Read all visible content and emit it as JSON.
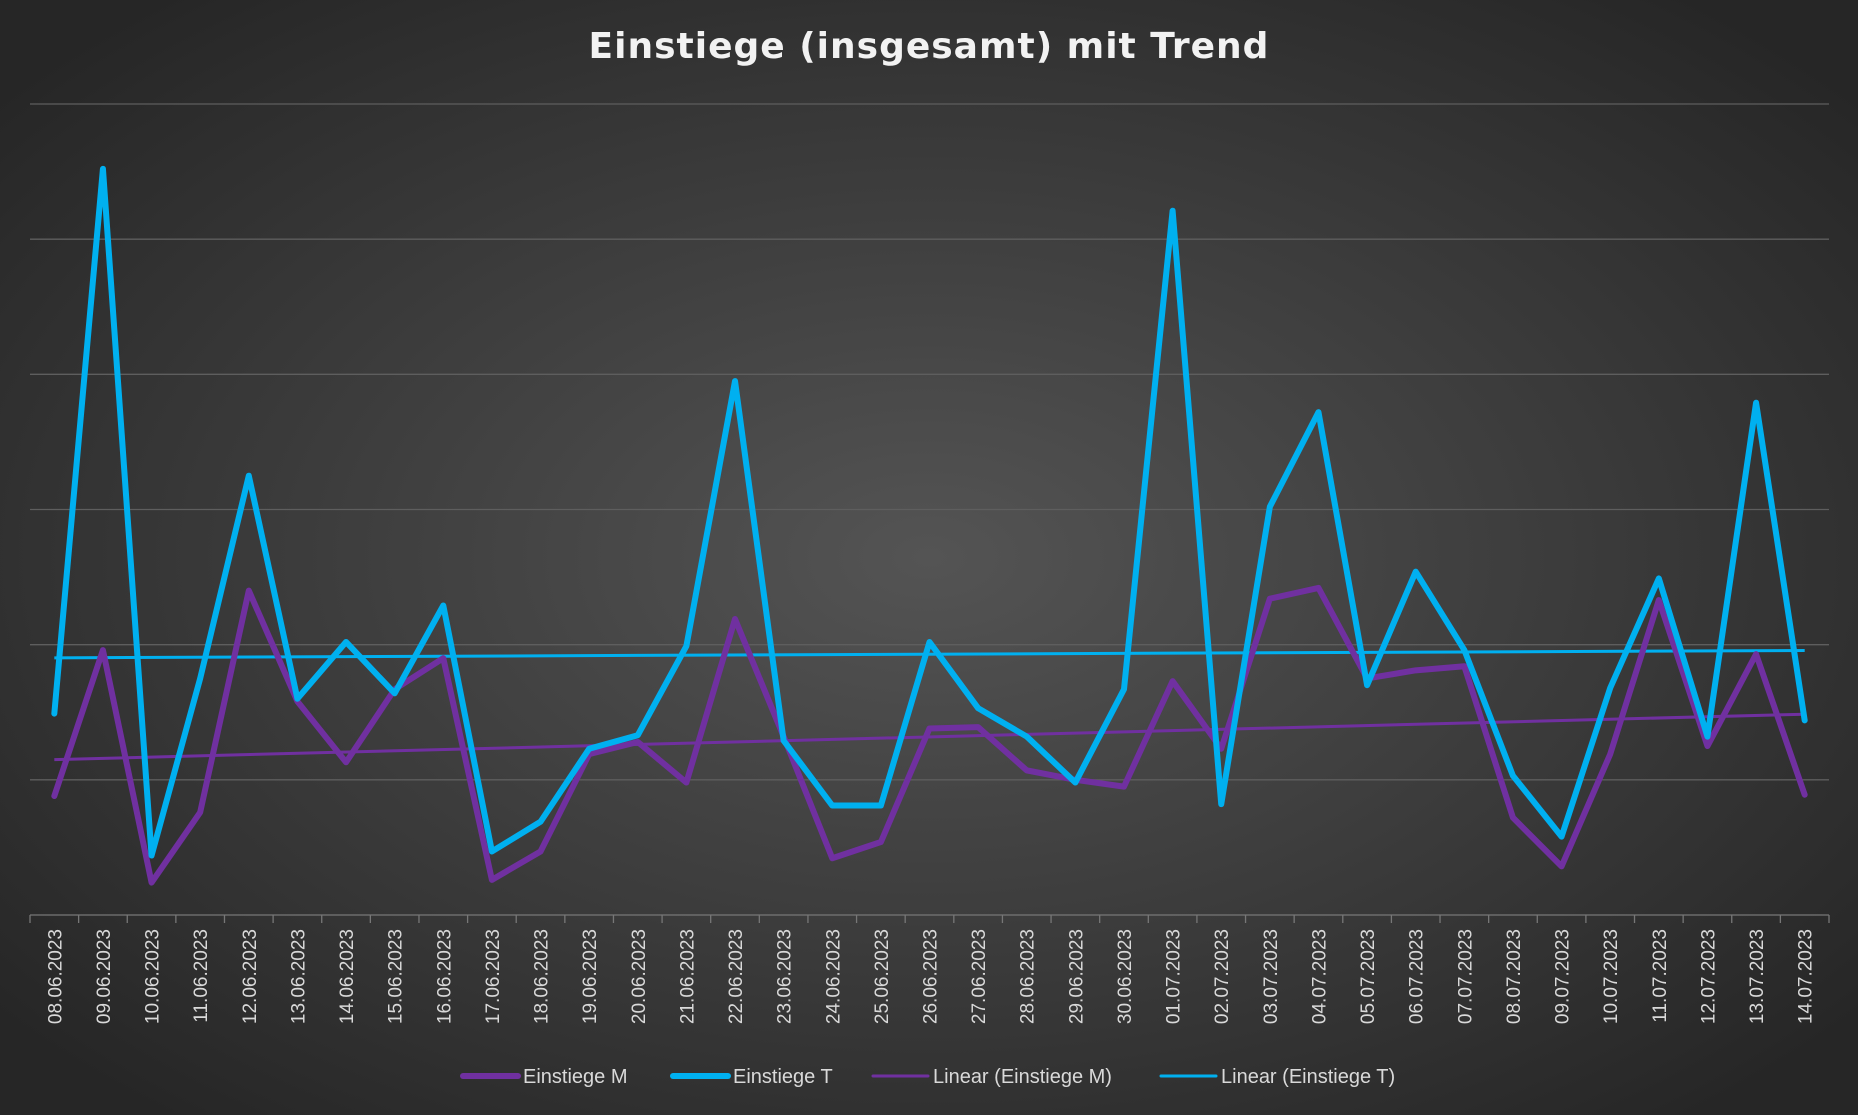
{
  "chart_data": {
    "type": "line",
    "title": "Einstiege (insgesamt) mit Trend",
    "xlabel": "",
    "ylabel": "",
    "y_axis_labels_shown": false,
    "ylim": [
      0,
      6
    ],
    "grid": true,
    "legend_position": "bottom",
    "categories": [
      "08.06.2023",
      "09.06.2023",
      "10.06.2023",
      "11.06.2023",
      "12.06.2023",
      "13.06.2023",
      "14.06.2023",
      "15.06.2023",
      "16.06.2023",
      "17.06.2023",
      "18.06.2023",
      "19.06.2023",
      "20.06.2023",
      "21.06.2023",
      "22.06.2023",
      "23.06.2023",
      "24.06.2023",
      "25.06.2023",
      "26.06.2023",
      "27.06.2023",
      "28.06.2023",
      "29.06.2023",
      "30.06.2023",
      "01.07.2023",
      "02.07.2023",
      "03.07.2023",
      "04.07.2023",
      "05.07.2023",
      "06.07.2023",
      "07.07.2023",
      "08.07.2023",
      "09.07.2023",
      "10.07.2023",
      "11.07.2023",
      "12.07.2023",
      "13.07.2023",
      "14.07.2023"
    ],
    "series": [
      {
        "name": "Einstiege M",
        "color": "#7030a0",
        "values": [
          0.88,
          1.96,
          0.24,
          0.76,
          2.4,
          1.58,
          1.13,
          1.67,
          1.9,
          0.26,
          0.47,
          1.19,
          1.28,
          0.98,
          2.19,
          1.32,
          0.42,
          0.54,
          1.38,
          1.39,
          1.07,
          1.0,
          0.95,
          1.73,
          1.23,
          2.34,
          2.42,
          1.75,
          1.81,
          1.84,
          0.72,
          0.36,
          1.19,
          2.33,
          1.25,
          1.93,
          0.89
        ]
      },
      {
        "name": "Einstiege T",
        "color": "#00b0f0",
        "values": [
          1.49,
          5.52,
          0.44,
          1.75,
          3.25,
          1.6,
          2.02,
          1.64,
          2.29,
          0.47,
          0.69,
          1.23,
          1.33,
          1.99,
          3.95,
          1.29,
          0.81,
          0.81,
          2.02,
          1.53,
          1.32,
          0.98,
          1.67,
          5.21,
          0.82,
          3.02,
          3.72,
          1.7,
          2.54,
          1.96,
          1.03,
          0.58,
          1.68,
          2.49,
          1.32,
          3.79,
          1.44
        ]
      }
    ],
    "trendlines": [
      {
        "name": "Linear (Einstiege M)",
        "of": "Einstiege M",
        "type": "linear",
        "color": "#7030a0"
      },
      {
        "name": "Linear (Einstiege T)",
        "of": "Einstiege T",
        "type": "linear",
        "color": "#00b0f0"
      }
    ]
  }
}
